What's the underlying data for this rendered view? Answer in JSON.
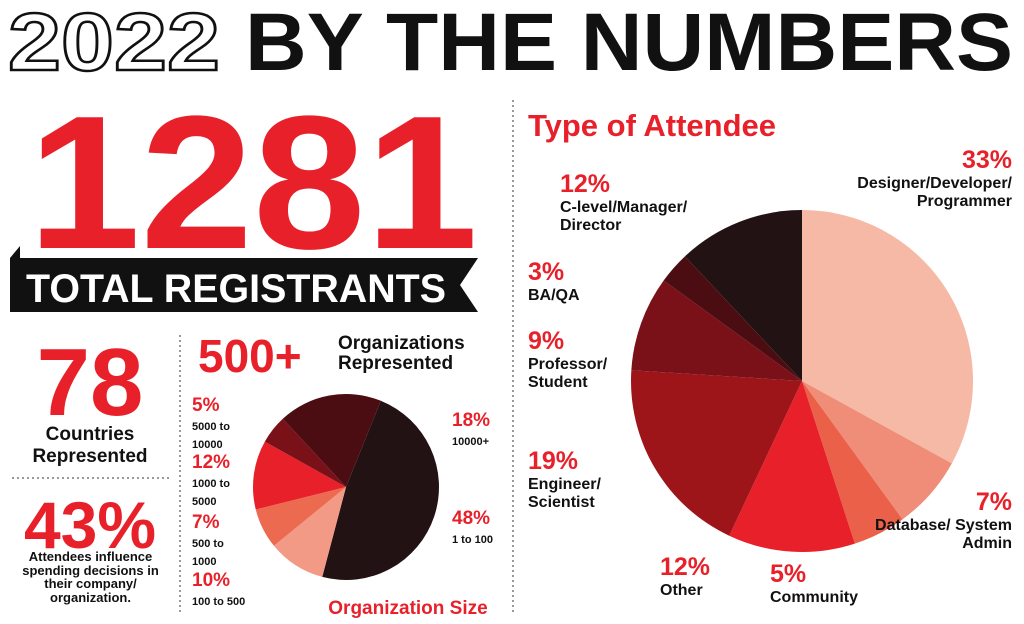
{
  "header": {
    "year": "2022",
    "title": "BY THE NUMBERS"
  },
  "stats": {
    "registrants": "1281",
    "registrants_label": "TOTAL REGISTRANTS",
    "countries": "78",
    "countries_label": "Countries Represented",
    "influence": "43%",
    "influence_label": "Attendees influence spending decisions in their company/ organization.",
    "organizations": "500+",
    "organizations_label": "Organizations Represented"
  },
  "chart_data": [
    {
      "type": "pie",
      "title": "Organization Size",
      "categories": [
        "1 to 100",
        "100 to 500",
        "500 to 1000",
        "1000 to 5000",
        "5000 to 10000",
        "10000+"
      ],
      "values": [
        48,
        10,
        7,
        12,
        5,
        18
      ],
      "value_labels": [
        "48%",
        "10%",
        "7%",
        "12%",
        "5%",
        "18%"
      ],
      "colors": [
        "#231214",
        "#f29a86",
        "#ec6a4f",
        "#e8202a",
        "#7a1119",
        "#4b0d12"
      ]
    },
    {
      "type": "pie",
      "title": "Type of Attendee",
      "categories": [
        "Designer/Developer/ Programmer",
        "Database/ System Admin",
        "Community",
        "Other",
        "Engineer/ Scientist",
        "Professor/ Student",
        "BA/QA",
        "C-level/Manager/ Director"
      ],
      "values": [
        33,
        7,
        5,
        12,
        19,
        9,
        3,
        12
      ],
      "value_labels": [
        "33%",
        "7%",
        "5%",
        "12%",
        "19%",
        "9%",
        "3%",
        "12%"
      ],
      "colors": [
        "#f6b9a6",
        "#f08d78",
        "#ea6049",
        "#e8202a",
        "#9d1419",
        "#7a1119",
        "#4b0d12",
        "#231214"
      ]
    }
  ]
}
